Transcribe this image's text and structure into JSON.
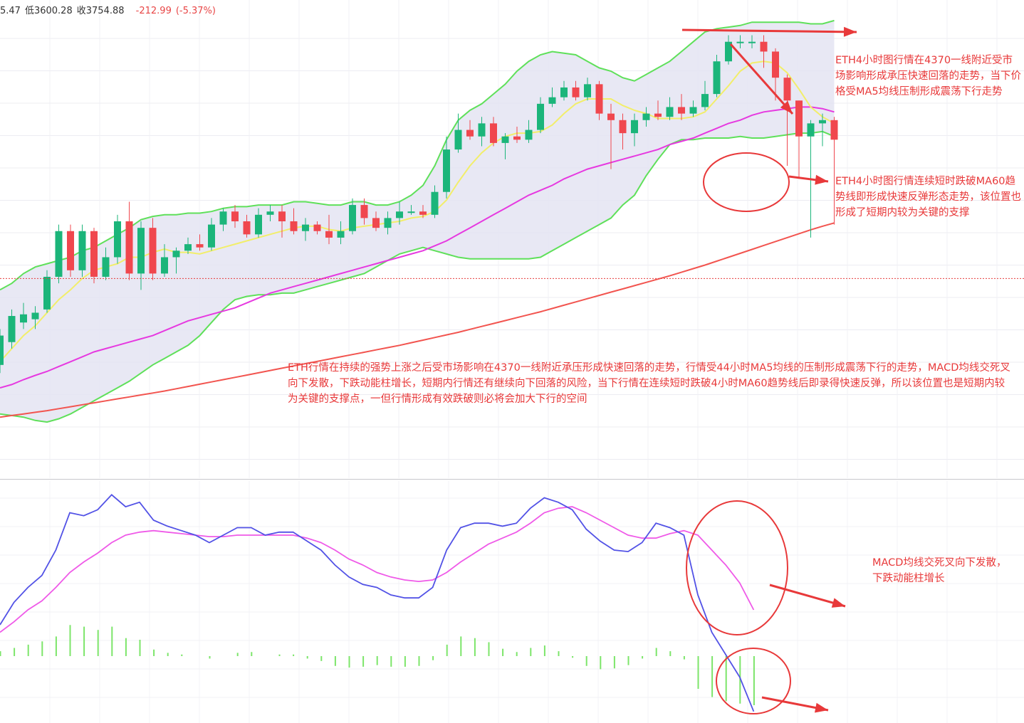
{
  "header": {
    "open_fragment": "5.47",
    "low_label": "低",
    "low_value": "3600.28",
    "close_label": "收",
    "close_value": "3754.88",
    "change": "-212.99",
    "change_pct": "(-5.37%)"
  },
  "annotations": {
    "top": "ETH4小时图行情在4370一线附近受市场影响形成承压快速回落的走势，当下价格受MA5均线压制形成震荡下行走势",
    "mid": "ETH4小时图行情连续短时跌破MA60趋势线即形成快速反弹形态走势，该位置也形成了短期内较为关键的支撑",
    "main": "ETH行情在持续的强势上涨之后受市场影响在4370一线附近承压形成快速回落的走势，行情受44小时MA5均线的压制形成震荡下行的走势，MACD均线交死叉向下发散，下跌动能柱增长，短期内行情还有继续向下回落的风险，当下行情在连续短时跌破4小时MA60趋势线后即录得快速反弹，所以该位置也是短期内较为关键的支撑点，一但行情形成有效跌破则必将会加大下行的空间",
    "macd": "MACD均线交死叉向下发散，下跌动能柱增长"
  },
  "colors": {
    "up": "#1bb57a",
    "down": "#f0474e",
    "band_line": "#5fe05a",
    "band_fill": "#e4e4f2",
    "ma5": "#f2ee6a",
    "ma20": "#e639e0",
    "ma60": "#f2544f",
    "macd_dif": "#5252e6",
    "macd_dea": "#ef5ae8",
    "hist": "#7ce56a",
    "annotation": "#e8393a",
    "current_price_line": "#e63e3e"
  },
  "chart_data": [
    {
      "type": "candlestick",
      "title": "",
      "current_price": 3754.88,
      "series_candles": [
        [
          3490,
          3580,
          3465,
          3600
        ],
        [
          3560,
          3640,
          3540,
          3660
        ],
        [
          3620,
          3645,
          3600,
          3680
        ],
        [
          3630,
          3650,
          3600,
          3670
        ],
        [
          3660,
          3760,
          3650,
          3780
        ],
        [
          3760,
          3900,
          3740,
          3920
        ],
        [
          3900,
          3780,
          3760,
          3920
        ],
        [
          3780,
          3900,
          3760,
          3920
        ],
        [
          3900,
          3760,
          3740,
          3910
        ],
        [
          3760,
          3820,
          3750,
          3850
        ],
        [
          3820,
          3930,
          3800,
          3950
        ],
        [
          3930,
          3770,
          3750,
          3990
        ],
        [
          3770,
          3910,
          3720,
          3930
        ],
        [
          3910,
          3770,
          3750,
          3940
        ],
        [
          3770,
          3820,
          3760,
          3860
        ],
        [
          3820,
          3840,
          3770,
          3850
        ],
        [
          3840,
          3860,
          3830,
          3880
        ],
        [
          3860,
          3850,
          3840,
          3890
        ],
        [
          3850,
          3920,
          3840,
          3940
        ],
        [
          3920,
          3960,
          3900,
          3970
        ],
        [
          3960,
          3930,
          3910,
          3980
        ],
        [
          3930,
          3890,
          3880,
          3950
        ],
        [
          3890,
          3950,
          3880,
          3970
        ],
        [
          3950,
          3960,
          3930,
          3980
        ],
        [
          3960,
          3930,
          3880,
          3980
        ],
        [
          3930,
          3900,
          3890,
          3970
        ],
        [
          3900,
          3920,
          3870,
          3940
        ],
        [
          3920,
          3900,
          3890,
          3930
        ],
        [
          3900,
          3880,
          3860,
          3950
        ],
        [
          3880,
          3900,
          3860,
          3930
        ],
        [
          3900,
          3980,
          3890,
          4000
        ],
        [
          3980,
          3940,
          3920,
          4000
        ],
        [
          3940,
          3910,
          3900,
          3960
        ],
        [
          3910,
          3940,
          3890,
          3960
        ],
        [
          3940,
          3960,
          3920,
          3990
        ],
        [
          3960,
          3960,
          3950,
          3980
        ],
        [
          3960,
          3950,
          3940,
          3980
        ],
        [
          3950,
          4020,
          3940,
          4040
        ],
        [
          4020,
          4150,
          4000,
          4190
        ],
        [
          4150,
          4210,
          4140,
          4260
        ],
        [
          4210,
          4190,
          4180,
          4240
        ],
        [
          4190,
          4230,
          4160,
          4250
        ],
        [
          4230,
          4170,
          4160,
          4250
        ],
        [
          4170,
          4190,
          4120,
          4200
        ],
        [
          4190,
          4180,
          4170,
          4220
        ],
        [
          4180,
          4210,
          4170,
          4240
        ],
        [
          4210,
          4290,
          4200,
          4310
        ],
        [
          4290,
          4310,
          4280,
          4340
        ],
        [
          4310,
          4340,
          4300,
          4360
        ],
        [
          4340,
          4310,
          4300,
          4360
        ],
        [
          4310,
          4350,
          4300,
          4370
        ],
        [
          4350,
          4260,
          4240,
          4360
        ],
        [
          4260,
          4240,
          4090,
          4290
        ],
        [
          4240,
          4200,
          4150,
          4260
        ],
        [
          4200,
          4240,
          4160,
          4260
        ],
        [
          4240,
          4260,
          4220,
          4280
        ],
        [
          4260,
          4250,
          4240,
          4300
        ],
        [
          4250,
          4280,
          4240,
          4310
        ],
        [
          4280,
          4260,
          4240,
          4320
        ],
        [
          4260,
          4280,
          4250,
          4300
        ],
        [
          4280,
          4320,
          4270,
          4360
        ],
        [
          4320,
          4420,
          4310,
          4440
        ],
        [
          4420,
          4480,
          4410,
          4500
        ],
        [
          4480,
          4480,
          4460,
          4500
        ],
        [
          4480,
          4480,
          4460,
          4500
        ],
        [
          4480,
          4450,
          4400,
          4500
        ],
        [
          4450,
          4370,
          4300,
          4460
        ],
        [
          4370,
          4300,
          4100,
          4380
        ],
        [
          4300,
          4190,
          4060,
          4300
        ],
        [
          4190,
          4230,
          3880,
          4240
        ],
        [
          4230,
          4240,
          4160,
          4260
        ],
        [
          4240,
          4180,
          3920,
          4250
        ]
      ],
      "series_ma5": [
        3500,
        3540,
        3580,
        3610,
        3650,
        3690,
        3720,
        3755,
        3780,
        3790,
        3800,
        3820,
        3820,
        3835,
        3845,
        3835,
        3835,
        3830,
        3840,
        3850,
        3860,
        3870,
        3880,
        3890,
        3900,
        3910,
        3915,
        3915,
        3905,
        3900,
        3910,
        3915,
        3920,
        3925,
        3930,
        3940,
        3945,
        3960,
        3995,
        4050,
        4100,
        4140,
        4170,
        4190,
        4200,
        4200,
        4205,
        4225,
        4260,
        4290,
        4305,
        4305,
        4305,
        4285,
        4270,
        4260,
        4245,
        4245,
        4245,
        4250,
        4265,
        4305,
        4345,
        4390,
        4415,
        4420,
        4415,
        4385,
        4335,
        4280,
        4250,
        4230
      ],
      "series_ma20": [
        3420,
        3430,
        3445,
        3458,
        3470,
        3485,
        3500,
        3515,
        3530,
        3540,
        3550,
        3560,
        3570,
        3580,
        3595,
        3610,
        3625,
        3635,
        3645,
        3655,
        3665,
        3680,
        3695,
        3710,
        3720,
        3730,
        3740,
        3750,
        3760,
        3770,
        3780,
        3790,
        3800,
        3810,
        3820,
        3830,
        3840,
        3855,
        3870,
        3890,
        3910,
        3930,
        3950,
        3970,
        3990,
        4010,
        4025,
        4040,
        4060,
        4075,
        4090,
        4100,
        4110,
        4120,
        4130,
        4140,
        4150,
        4165,
        4175,
        4185,
        4200,
        4215,
        4230,
        4240,
        4255,
        4265,
        4270,
        4275,
        4280,
        4280,
        4275,
        4265
      ],
      "series_ma60": [
        3330,
        3335,
        3340,
        3345,
        3350,
        3356,
        3362,
        3368,
        3374,
        3380,
        3386,
        3392,
        3398,
        3404,
        3410,
        3417,
        3424,
        3431,
        3438,
        3445,
        3452,
        3459,
        3466,
        3473,
        3480,
        3487,
        3494,
        3501,
        3508,
        3515,
        3522,
        3529,
        3536,
        3543,
        3550,
        3558,
        3566,
        3574,
        3582,
        3590,
        3599,
        3608,
        3617,
        3626,
        3635,
        3644,
        3653,
        3663,
        3673,
        3683,
        3693,
        3703,
        3713,
        3723,
        3733,
        3743,
        3753,
        3763,
        3774,
        3785,
        3796,
        3808,
        3820,
        3832,
        3844,
        3856,
        3868,
        3880,
        3892,
        3904,
        3915,
        3925
      ],
      "series_band_upper": [
        3720,
        3740,
        3770,
        3790,
        3800,
        3810,
        3820,
        3840,
        3850,
        3870,
        3890,
        3910,
        3935,
        3945,
        3950,
        3950,
        3955,
        3955,
        3960,
        3970,
        3975,
        3975,
        3980,
        3980,
        3980,
        3990,
        3990,
        3985,
        3980,
        3980,
        3990,
        3990,
        3980,
        3980,
        3990,
        4010,
        4040,
        4100,
        4180,
        4240,
        4270,
        4290,
        4320,
        4350,
        4390,
        4420,
        4440,
        4450,
        4445,
        4440,
        4420,
        4400,
        4390,
        4370,
        4360,
        4380,
        4400,
        4420,
        4450,
        4480,
        4510,
        4520,
        4525,
        4530,
        4540,
        4540,
        4540,
        4540,
        4540,
        4535,
        4535,
        4545
      ],
      "series_band_lower": [
        3340,
        3335,
        3330,
        3320,
        3315,
        3325,
        3340,
        3360,
        3380,
        3400,
        3420,
        3440,
        3465,
        3490,
        3510,
        3530,
        3550,
        3580,
        3620,
        3660,
        3690,
        3700,
        3705,
        3705,
        3710,
        3710,
        3720,
        3730,
        3740,
        3750,
        3760,
        3770,
        3790,
        3810,
        3830,
        3840,
        3850,
        3840,
        3830,
        3820,
        3815,
        3815,
        3815,
        3815,
        3815,
        3815,
        3820,
        3840,
        3860,
        3880,
        3900,
        3920,
        3940,
        3980,
        4010,
        4070,
        4120,
        4165,
        4180,
        4180,
        4185,
        4185,
        4185,
        4190,
        4185,
        4185,
        4190,
        4195,
        4200,
        4200,
        4205,
        4190
      ]
    },
    {
      "type": "line",
      "title": "MACD",
      "series_dif": [
        -30,
        -15,
        -5,
        3,
        20,
        45,
        43,
        47,
        57,
        49,
        52,
        40,
        36,
        33,
        30,
        25,
        30,
        35,
        35,
        30,
        32,
        32,
        26,
        20,
        10,
        2,
        -3,
        -5,
        -10,
        -12,
        -12,
        -5,
        20,
        35,
        38,
        38,
        36,
        38,
        48,
        55,
        52,
        47,
        34,
        26,
        20,
        19,
        25,
        38,
        35,
        30,
        -10,
        -35,
        -50,
        -65,
        -88
      ],
      "series_dea": [
        -35,
        -28,
        -20,
        -14,
        -5,
        5,
        12,
        18,
        25,
        30,
        32,
        33,
        32,
        31,
        30,
        29,
        29,
        30,
        30,
        30,
        30,
        30,
        28,
        25,
        20,
        14,
        10,
        5,
        2,
        0,
        -1,
        0,
        5,
        12,
        18,
        24,
        28,
        32,
        38,
        45,
        48,
        49,
        45,
        40,
        35,
        30,
        28,
        28,
        31,
        33,
        30,
        20,
        10,
        -2,
        -20
      ],
      "series_hist": [
        6,
        10,
        14,
        18,
        24,
        38,
        36,
        32,
        36,
        22,
        20,
        8,
        4,
        2,
        0,
        -3,
        0,
        4,
        5,
        0,
        2,
        2,
        -3,
        -6,
        -12,
        -14,
        -13,
        -11,
        -13,
        -13,
        -12,
        -5,
        14,
        24,
        22,
        17,
        9,
        5,
        10,
        13,
        6,
        -2,
        -12,
        -16,
        -15,
        -11,
        -3,
        10,
        6,
        -4,
        -40,
        -50,
        -55,
        -58,
        -60
      ]
    }
  ]
}
